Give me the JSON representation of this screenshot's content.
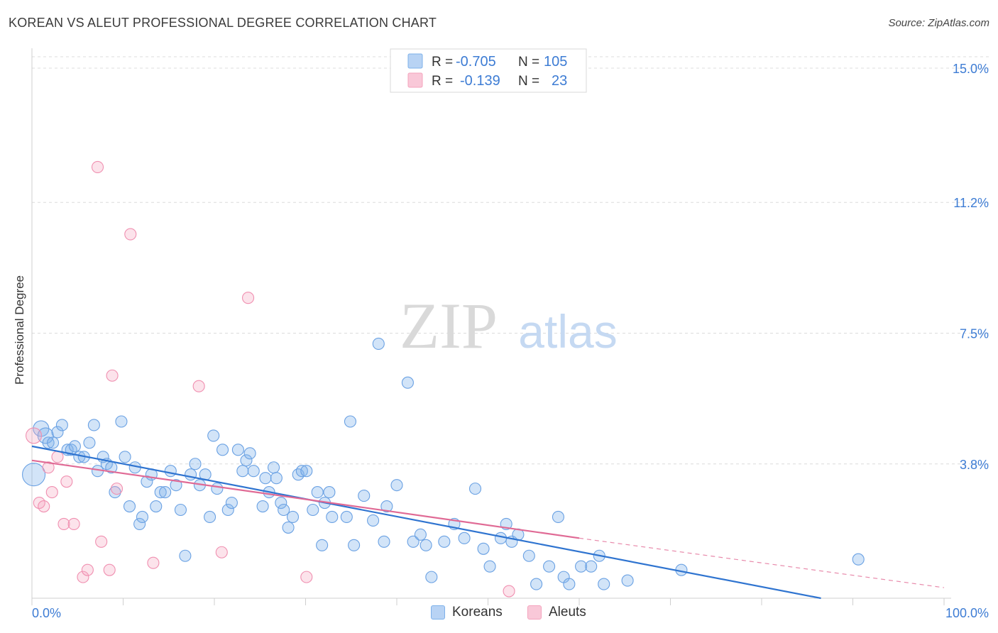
{
  "title": "KOREAN VS ALEUT PROFESSIONAL DEGREE CORRELATION CHART",
  "source": "Source: ZipAtlas.com",
  "watermark": {
    "zip": "ZIP",
    "atlas": "atlas"
  },
  "colors": {
    "blue": "#7eb1ea",
    "blue_line": "#2f74d0",
    "pink": "#f4a3bd",
    "pink_line": "#e06a95",
    "accent_text": "#3d7cd4"
  },
  "legend_top": [
    {
      "r_label": "R =",
      "r_value": "-0.705",
      "n_label": "N =",
      "n_value": "105"
    },
    {
      "r_label": "R =",
      "r_value": "-0.139",
      "n_label": "N =",
      "n_value": "23"
    }
  ],
  "legend_bottom": [
    "Koreans",
    "Aleuts"
  ],
  "chart_data": {
    "type": "scatter",
    "title": "KOREAN VS ALEUT PROFESSIONAL DEGREE CORRELATION CHART",
    "xlabel": "",
    "ylabel": "Professional Degree",
    "xlim": [
      0,
      100
    ],
    "ylim": [
      0,
      15
    ],
    "x_tick_labels": [
      "0.0%",
      "100.0%"
    ],
    "y_ticks": [
      3.8,
      7.5,
      11.2,
      15.0
    ],
    "y_tick_labels": [
      "3.8%",
      "7.5%",
      "11.2%",
      "15.0%"
    ],
    "grid": true,
    "legend_position": "top-center",
    "series": [
      {
        "name": "Koreans",
        "color": "#7eb1ea",
        "r": -0.705,
        "n": 105,
        "trend": {
          "x": [
            0,
            86.5
          ],
          "y": [
            4.3,
            0.0
          ]
        },
        "points": [
          [
            0.2,
            3.5,
            3
          ],
          [
            1.0,
            4.8,
            2
          ],
          [
            1.5,
            4.6,
            2
          ],
          [
            1.8,
            4.4,
            1
          ],
          [
            2.3,
            4.4,
            1
          ],
          [
            2.8,
            4.7,
            1
          ],
          [
            3.3,
            4.9,
            1
          ],
          [
            3.9,
            4.2,
            1
          ],
          [
            4.3,
            4.2,
            1
          ],
          [
            4.7,
            4.3,
            1
          ],
          [
            5.2,
            4.0,
            1
          ],
          [
            5.7,
            4.0,
            1
          ],
          [
            6.3,
            4.4,
            1
          ],
          [
            6.8,
            4.9,
            1
          ],
          [
            7.2,
            3.6,
            1
          ],
          [
            7.8,
            4.0,
            1
          ],
          [
            8.2,
            3.8,
            1
          ],
          [
            8.7,
            3.7,
            1
          ],
          [
            9.1,
            3.0,
            1
          ],
          [
            9.8,
            5.0,
            1
          ],
          [
            10.2,
            4.0,
            1
          ],
          [
            10.7,
            2.6,
            1
          ],
          [
            11.3,
            3.7,
            1
          ],
          [
            11.8,
            2.1,
            1
          ],
          [
            12.1,
            2.3,
            1
          ],
          [
            12.6,
            3.3,
            1
          ],
          [
            13.1,
            3.5,
            1
          ],
          [
            13.6,
            2.6,
            1
          ],
          [
            14.1,
            3.0,
            1
          ],
          [
            14.6,
            3.0,
            1
          ],
          [
            15.2,
            3.6,
            1
          ],
          [
            15.8,
            3.2,
            1
          ],
          [
            16.3,
            2.5,
            1
          ],
          [
            16.8,
            1.2,
            1
          ],
          [
            17.4,
            3.5,
            1
          ],
          [
            17.9,
            3.8,
            1
          ],
          [
            18.4,
            3.2,
            1
          ],
          [
            19.0,
            3.5,
            1
          ],
          [
            19.5,
            2.3,
            1
          ],
          [
            19.9,
            4.6,
            1
          ],
          [
            20.3,
            3.1,
            1
          ],
          [
            20.9,
            4.2,
            1
          ],
          [
            21.5,
            2.5,
            1
          ],
          [
            21.9,
            2.7,
            1
          ],
          [
            22.6,
            4.2,
            1
          ],
          [
            23.1,
            3.6,
            1
          ],
          [
            23.5,
            3.9,
            1
          ],
          [
            23.9,
            4.1,
            1
          ],
          [
            24.3,
            3.6,
            1
          ],
          [
            25.3,
            2.6,
            1
          ],
          [
            25.6,
            3.4,
            1
          ],
          [
            26.0,
            3.0,
            1
          ],
          [
            26.5,
            3.7,
            1
          ],
          [
            26.8,
            3.4,
            1
          ],
          [
            27.3,
            2.7,
            1
          ],
          [
            27.6,
            2.5,
            1
          ],
          [
            28.1,
            2.0,
            1
          ],
          [
            28.6,
            2.3,
            1
          ],
          [
            29.2,
            3.5,
            1
          ],
          [
            29.6,
            3.6,
            1
          ],
          [
            30.1,
            3.6,
            1
          ],
          [
            30.8,
            2.5,
            1
          ],
          [
            31.3,
            3.0,
            1
          ],
          [
            31.8,
            1.5,
            1
          ],
          [
            32.1,
            2.7,
            1
          ],
          [
            32.6,
            3.0,
            1
          ],
          [
            32.9,
            2.3,
            1
          ],
          [
            34.5,
            2.3,
            1
          ],
          [
            34.9,
            5.0,
            1
          ],
          [
            35.3,
            1.5,
            1
          ],
          [
            36.4,
            2.9,
            1
          ],
          [
            37.4,
            2.2,
            1
          ],
          [
            38.0,
            7.2,
            1
          ],
          [
            38.6,
            1.6,
            1
          ],
          [
            38.9,
            2.6,
            1
          ],
          [
            40.0,
            3.2,
            1
          ],
          [
            41.2,
            6.1,
            1
          ],
          [
            41.8,
            1.6,
            1
          ],
          [
            42.6,
            1.8,
            1
          ],
          [
            43.2,
            1.5,
            1
          ],
          [
            43.8,
            0.6,
            1
          ],
          [
            45.2,
            1.6,
            1
          ],
          [
            46.3,
            2.1,
            1
          ],
          [
            47.4,
            1.7,
            1
          ],
          [
            48.6,
            3.1,
            1
          ],
          [
            49.5,
            1.4,
            1
          ],
          [
            50.2,
            0.9,
            1
          ],
          [
            51.4,
            1.7,
            1
          ],
          [
            52.0,
            2.1,
            1
          ],
          [
            52.6,
            1.6,
            1
          ],
          [
            53.3,
            1.8,
            1
          ],
          [
            54.5,
            1.2,
            1
          ],
          [
            55.3,
            0.4,
            1
          ],
          [
            56.7,
            0.9,
            1
          ],
          [
            57.7,
            2.3,
            1
          ],
          [
            58.3,
            0.6,
            1
          ],
          [
            58.9,
            0.4,
            1
          ],
          [
            60.2,
            0.9,
            1
          ],
          [
            61.3,
            0.9,
            1
          ],
          [
            62.2,
            1.2,
            1
          ],
          [
            62.7,
            0.4,
            1
          ],
          [
            65.3,
            0.5,
            1
          ],
          [
            71.2,
            0.8,
            1
          ],
          [
            90.6,
            1.1,
            1
          ]
        ]
      },
      {
        "name": "Aleuts",
        "color": "#f4a3bd",
        "r": -0.139,
        "n": 23,
        "trend": {
          "x": [
            0,
            60.0
          ],
          "y": [
            3.9,
            1.7
          ]
        },
        "trend_extension": {
          "x": [
            60.0,
            100.0
          ],
          "y": [
            1.7,
            0.3
          ]
        },
        "points": [
          [
            0.2,
            4.6,
            2
          ],
          [
            0.8,
            2.7,
            1
          ],
          [
            1.3,
            2.6,
            1
          ],
          [
            1.8,
            3.7,
            1
          ],
          [
            2.2,
            3.0,
            1
          ],
          [
            2.8,
            4.0,
            1
          ],
          [
            3.5,
            2.1,
            1
          ],
          [
            3.8,
            3.3,
            1
          ],
          [
            4.6,
            2.1,
            1
          ],
          [
            5.6,
            0.6,
            1
          ],
          [
            6.1,
            0.8,
            1
          ],
          [
            7.6,
            1.6,
            1
          ],
          [
            7.2,
            12.2,
            1
          ],
          [
            8.5,
            0.8,
            1
          ],
          [
            8.8,
            6.3,
            1
          ],
          [
            9.3,
            3.1,
            1
          ],
          [
            10.8,
            10.3,
            1
          ],
          [
            13.3,
            1.0,
            1
          ],
          [
            18.3,
            6.0,
            1
          ],
          [
            20.8,
            1.3,
            1
          ],
          [
            23.7,
            8.5,
            1
          ],
          [
            30.1,
            0.6,
            1
          ],
          [
            52.3,
            0.2,
            1
          ]
        ]
      }
    ]
  }
}
